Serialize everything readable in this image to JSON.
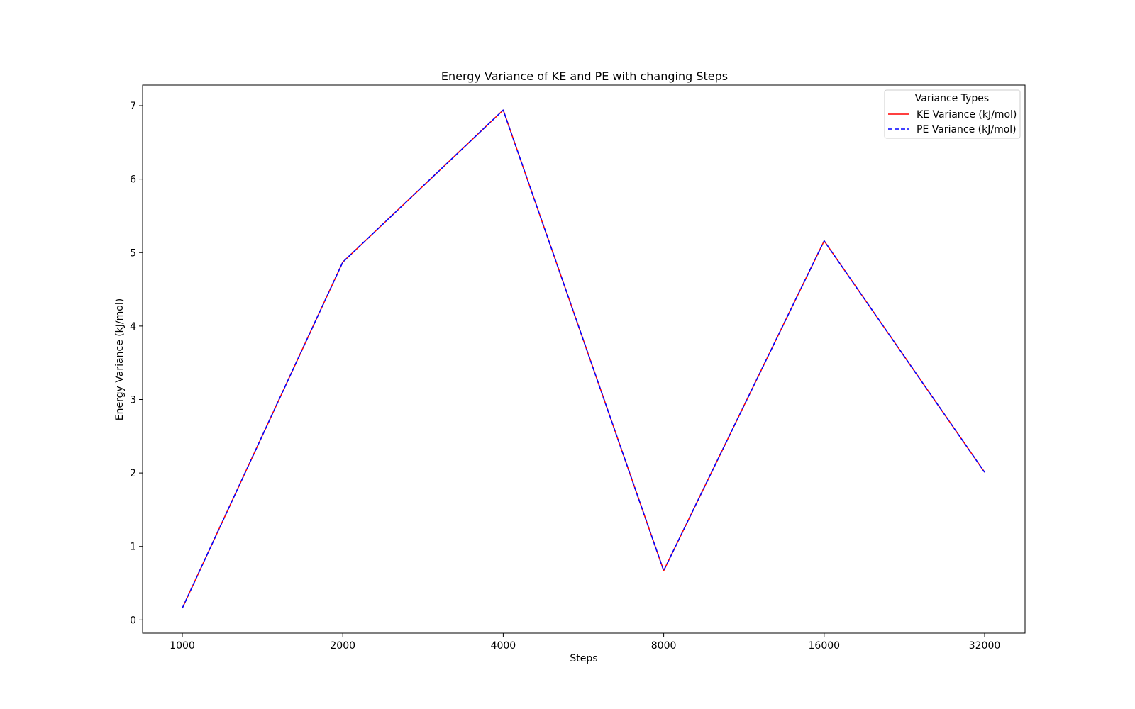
{
  "chart_data": {
    "type": "line",
    "title": "Energy Variance of KE and PE with changing Steps",
    "xlabel": "Steps",
    "ylabel": "Energy Variance (kJ/mol)",
    "x": [
      "1000",
      "2000",
      "4000",
      "8000",
      "16000",
      "32000"
    ],
    "yticks": [
      "0",
      "1",
      "2",
      "3",
      "4",
      "5",
      "6",
      "7"
    ],
    "ylim": [
      -0.18,
      7.28
    ],
    "grid": false,
    "legend": {
      "title": "Variance Types",
      "placement": "top-right"
    },
    "series": [
      {
        "name": "KE Variance (kJ/mol)",
        "values": [
          0.16,
          4.87,
          6.94,
          0.67,
          5.16,
          2.01
        ],
        "color": "#ff0000",
        "style": "solid"
      },
      {
        "name": "PE Variance (kJ/mol)",
        "values": [
          0.16,
          4.87,
          6.94,
          0.67,
          5.16,
          2.01
        ],
        "color": "#0000ff",
        "style": "dashed"
      }
    ]
  }
}
